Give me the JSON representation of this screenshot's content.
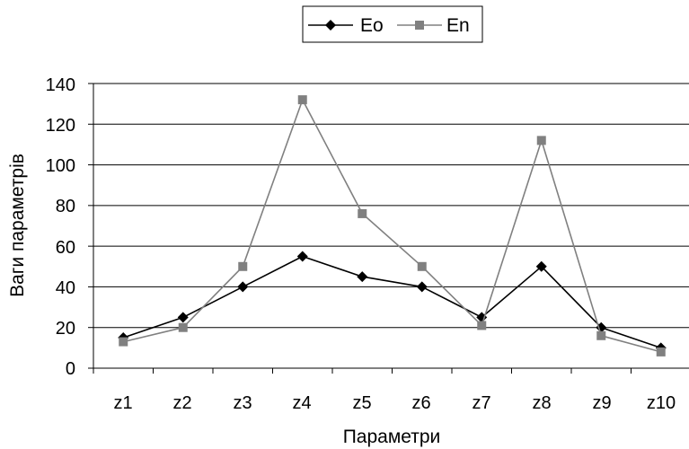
{
  "chart_data": {
    "type": "line",
    "categories": [
      "z1",
      "z2",
      "z3",
      "z4",
      "z5",
      "z6",
      "z7",
      "z8",
      "z9",
      "z10"
    ],
    "series": [
      {
        "name": "Eo",
        "values": [
          15,
          25,
          40,
          55,
          45,
          40,
          25,
          50,
          20,
          10
        ],
        "color": "#000000",
        "marker": "diamond"
      },
      {
        "name": "En",
        "values": [
          13,
          20,
          50,
          132,
          76,
          50,
          21,
          112,
          16,
          8
        ],
        "color": "#808080",
        "marker": "square"
      }
    ],
    "title": "",
    "xlabel": "Параметри",
    "ylabel": "Ваги параметрів",
    "ylim": [
      0,
      140
    ],
    "yticks": [
      "0",
      "20",
      "40",
      "60",
      "80",
      "100",
      "120",
      "140"
    ],
    "grid": true,
    "legend_position": "top"
  }
}
